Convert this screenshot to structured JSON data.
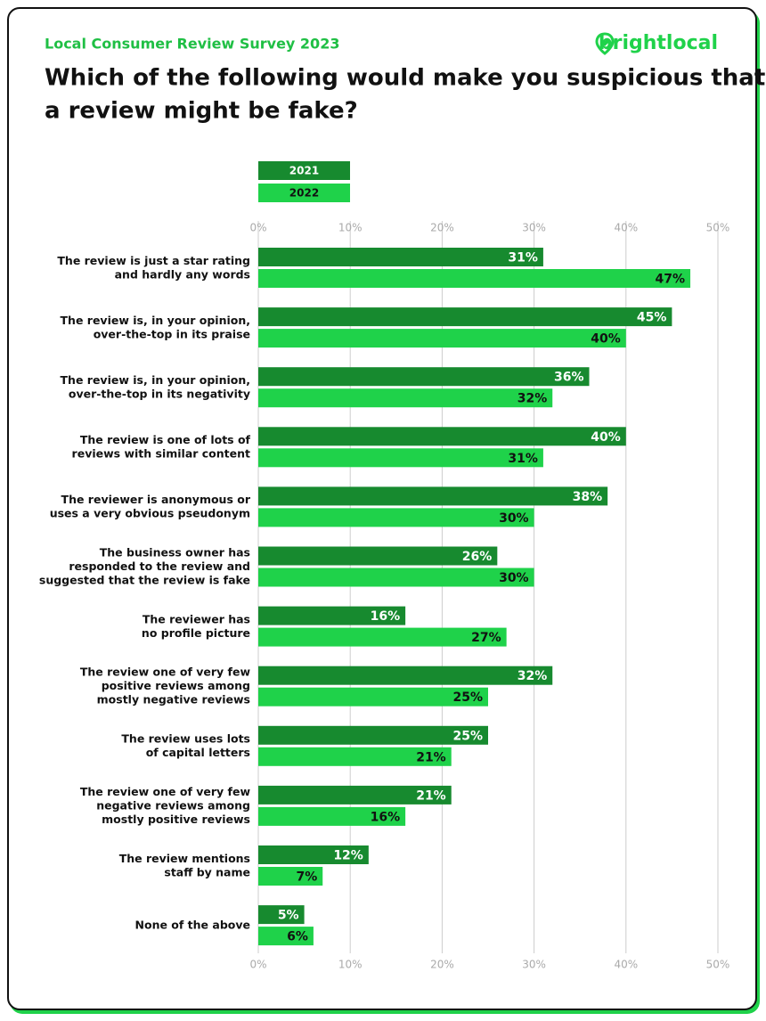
{
  "chart_data": {
    "type": "hbar",
    "subtitle": "Local Consumer Review Survey 2023",
    "title": "Which of the following would make you suspicious that\na review might be fake?",
    "logo": "brightlocal",
    "categories": [
      "The review is just a star rating\nand hardly any words",
      "The review is, in your opinion,\nover-the-top in its praise",
      "The review is, in your opinion,\nover-the-top in its negativity",
      "The review is one of lots of\nreviews with similar content",
      "The reviewer is anonymous or\nuses a very obvious pseudonym",
      "The business owner has\nresponded to the review and\nsuggested that the review is fake",
      "The reviewer has\nno profile picture",
      "The review one of very few\npositive reviews among\nmostly negative reviews",
      "The review uses lots\nof capital letters",
      "The review one of very few\nnegative reviews among\nmostly positive reviews",
      "The review mentions\nstaff by name",
      "None of the above"
    ],
    "series": [
      {
        "name": "2021",
        "color": "#178a2f",
        "values": [
          31,
          45,
          36,
          40,
          38,
          26,
          16,
          32,
          25,
          21,
          12,
          5
        ],
        "value_labels": [
          "31%",
          "45%",
          "36%",
          "40%",
          "38%",
          "26%",
          "16%",
          "32%",
          "25%",
          "21%",
          "12%",
          "5%"
        ]
      },
      {
        "name": "2022",
        "color": "#1fd24a",
        "values": [
          47,
          40,
          32,
          31,
          30,
          30,
          27,
          25,
          21,
          16,
          7,
          6
        ],
        "value_labels": [
          "47%",
          "40%",
          "32%",
          "31%",
          "30%",
          "30%",
          "27%",
          "25%",
          "21%",
          "16%",
          "7%",
          "6%"
        ]
      }
    ],
    "xlim": [
      0,
      50
    ],
    "xticks": [
      {
        "value": 0,
        "label": "0%"
      },
      {
        "value": 10,
        "label": "10%"
      },
      {
        "value": 20,
        "label": "20%"
      },
      {
        "value": 30,
        "label": "30%"
      },
      {
        "value": 40,
        "label": "40%"
      },
      {
        "value": 50,
        "label": "50%"
      }
    ],
    "grid": true
  }
}
